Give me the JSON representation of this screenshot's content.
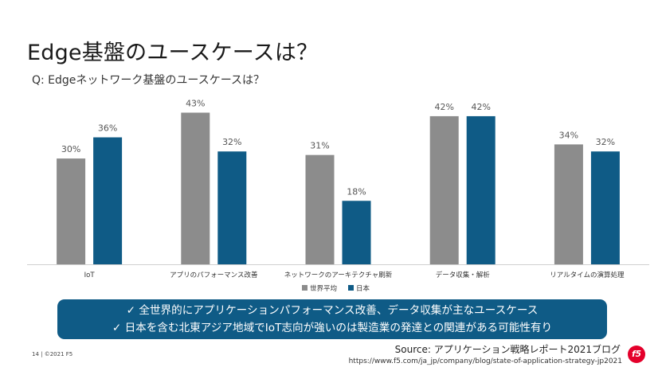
{
  "slide": {
    "title": "Edge基盤のユースケースは？",
    "subtitle": "Q: Edgeネットワーク基盤のユースケースは？",
    "callout_lines": [
      "✓ 全世界的にアプリケーションパフォーマンス改善、データ収集が主なユースケース",
      "✓ 日本を含む北東アジア地域でIoT志向が強いのは製造業の発達との関連がある可能性有り"
    ],
    "footer_left": "14 | ©2021 F5",
    "source": "Source: アプリケーション戦略レポート2021ブログ",
    "url": "https://www.f5.com/ja_jp/company/blog/state-of-application-strategy-jp2021",
    "logo_text": "f5"
  },
  "chart_data": {
    "type": "bar",
    "title": "",
    "xlabel": "",
    "ylabel": "",
    "ylim": [
      0,
      50
    ],
    "grid": false,
    "legend_position": "bottom",
    "categories": [
      "IoT",
      "アプリのパフォーマンス改善",
      "ネットワークのアーキテクチャ刷新",
      "データ収集・解析",
      "リアルタイムの演算処理"
    ],
    "series": [
      {
        "name": "世界平均",
        "values": [
          30,
          43,
          31,
          42,
          34
        ],
        "labels": [
          "30%",
          "43%",
          "31%",
          "42%",
          "34%"
        ],
        "color": "#8c8c8c"
      },
      {
        "name": "日本",
        "values": [
          36,
          32,
          18,
          42,
          32
        ],
        "labels": [
          "36%",
          "32%",
          "18%",
          "42%",
          "32%"
        ],
        "color": "#0f5b86"
      }
    ]
  }
}
